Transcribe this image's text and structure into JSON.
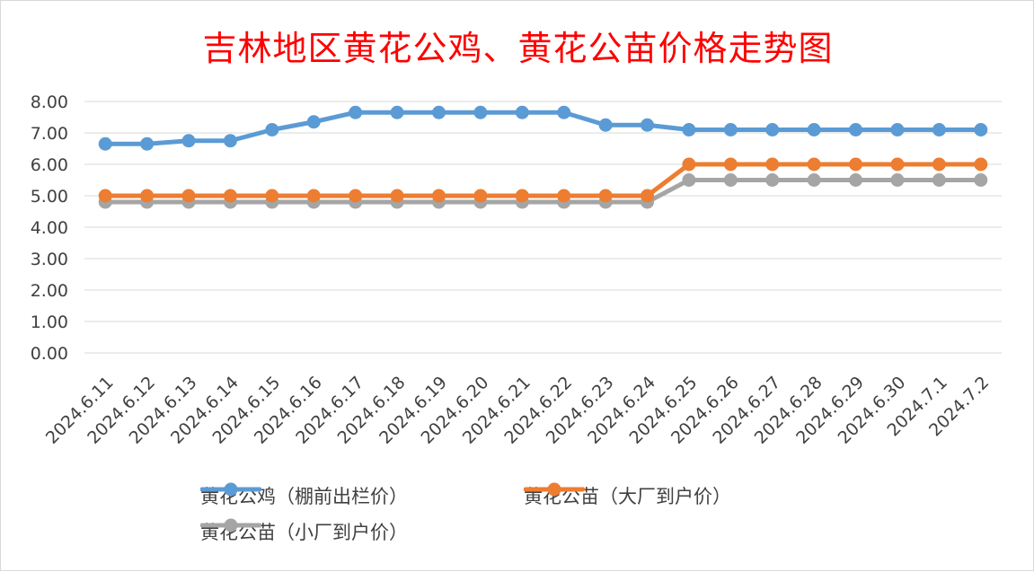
{
  "chart_data": {
    "type": "line",
    "title": "吉林地区黄花公鸡、黄花公苗价格走势图",
    "xlabel": "",
    "ylabel": "",
    "categories": [
      "2024.6.11",
      "2024.6.12",
      "2024.6.13",
      "2024.6.14",
      "2024.6.15",
      "2024.6.16",
      "2024.6.17",
      "2024.6.18",
      "2024.6.19",
      "2024.6.20",
      "2024.6.21",
      "2024.6.22",
      "2024.6.23",
      "2024.6.24",
      "2024.6.25",
      "2024.6.26",
      "2024.6.27",
      "2024.6.28",
      "2024.6.29",
      "2024.6.30",
      "2024.7.1",
      "2024.7.2"
    ],
    "ylim": [
      0,
      8
    ],
    "yticks": [
      "0.00",
      "1.00",
      "2.00",
      "3.00",
      "4.00",
      "5.00",
      "6.00",
      "7.00",
      "8.00"
    ],
    "grid": true,
    "legend_position": "bottom",
    "series": [
      {
        "name": "黄花公鸡（棚前出栏价）",
        "color": "#5b9bd5",
        "values": [
          6.65,
          6.65,
          6.75,
          6.75,
          7.1,
          7.35,
          7.65,
          7.65,
          7.65,
          7.65,
          7.65,
          7.65,
          7.25,
          7.25,
          7.1,
          7.1,
          7.1,
          7.1,
          7.1,
          7.1,
          7.1,
          7.1
        ]
      },
      {
        "name": "黄花公苗（大厂到户价）",
        "color": "#ed7d31",
        "values": [
          5.0,
          5.0,
          5.0,
          5.0,
          5.0,
          5.0,
          5.0,
          5.0,
          5.0,
          5.0,
          5.0,
          5.0,
          5.0,
          5.0,
          6.0,
          6.0,
          6.0,
          6.0,
          6.0,
          6.0,
          6.0,
          6.0
        ]
      },
      {
        "name": "黄花公苗（小厂到户价）",
        "color": "#a5a5a5",
        "values": [
          4.8,
          4.8,
          4.8,
          4.8,
          4.8,
          4.8,
          4.8,
          4.8,
          4.8,
          4.8,
          4.8,
          4.8,
          4.8,
          4.8,
          5.5,
          5.5,
          5.5,
          5.5,
          5.5,
          5.5,
          5.5,
          5.5
        ]
      }
    ]
  }
}
